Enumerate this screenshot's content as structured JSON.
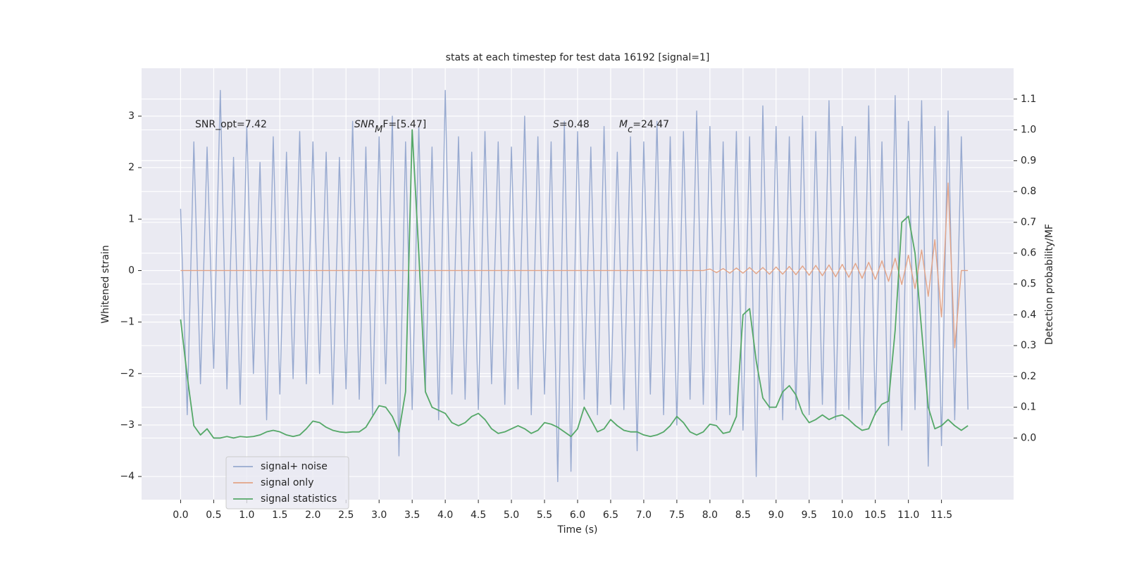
{
  "chart_data": {
    "type": "line",
    "title": "stats at each timestep for test data 16192 [signal=1]",
    "xlabel": "Time (s)",
    "ylabel": "Whitened strain",
    "y2label": "Detection probability/MF",
    "annotations": [
      {
        "text": "SNR_opt=7.42"
      },
      {
        "italic": "SNR",
        "sub": "M",
        "text": "F=[5.47]"
      },
      {
        "italic": "S",
        "text": "=0.48"
      },
      {
        "italic": "M",
        "sub": "c",
        "text": "=24.47"
      }
    ],
    "x": [
      0.0,
      0.1,
      0.2,
      0.3,
      0.4,
      0.5,
      0.6,
      0.7,
      0.8,
      0.9,
      1.0,
      1.1,
      1.2,
      1.3,
      1.4,
      1.5,
      1.6,
      1.7,
      1.8,
      1.9,
      2.0,
      2.1,
      2.2,
      2.3,
      2.4,
      2.5,
      2.6,
      2.7,
      2.8,
      2.9,
      3.0,
      3.1,
      3.2,
      3.3,
      3.4,
      3.5,
      3.6,
      3.7,
      3.8,
      3.9,
      4.0,
      4.1,
      4.2,
      4.3,
      4.4,
      4.5,
      4.6,
      4.7,
      4.8,
      4.9,
      5.0,
      5.1,
      5.2,
      5.3,
      5.4,
      5.5,
      5.6,
      5.7,
      5.8,
      5.9,
      6.0,
      6.1,
      6.2,
      6.3,
      6.4,
      6.5,
      6.6,
      6.7,
      6.8,
      6.9,
      7.0,
      7.1,
      7.2,
      7.3,
      7.4,
      7.5,
      7.6,
      7.7,
      7.8,
      7.9,
      8.0,
      8.1,
      8.2,
      8.3,
      8.4,
      8.5,
      8.6,
      8.7,
      8.8,
      8.9,
      9.0,
      9.1,
      9.2,
      9.3,
      9.4,
      9.5,
      9.6,
      9.7,
      9.8,
      9.9,
      10.0,
      10.1,
      10.2,
      10.3,
      10.4,
      10.5,
      10.6,
      10.7,
      10.8,
      10.9,
      11.0,
      11.1,
      11.2,
      11.3,
      11.4,
      11.5,
      11.6,
      11.7,
      11.8,
      11.9
    ],
    "series": [
      {
        "name": "signal+ noise",
        "color": "#98aad0",
        "values": [
          1.2,
          -2.8,
          2.5,
          -2.2,
          2.4,
          -1.9,
          3.5,
          -2.3,
          2.2,
          -2.6,
          2.8,
          -2.0,
          2.1,
          -2.9,
          2.6,
          -2.4,
          2.3,
          -2.1,
          2.7,
          -2.2,
          2.5,
          -2.0,
          2.3,
          -2.6,
          2.2,
          -2.3,
          2.9,
          -2.5,
          2.4,
          -2.8,
          2.6,
          -2.2,
          3.0,
          -3.6,
          2.5,
          -2.7,
          2.8,
          -2.3,
          2.4,
          -2.9,
          3.5,
          -2.4,
          2.6,
          -2.5,
          2.3,
          -2.7,
          2.7,
          -2.2,
          2.5,
          -2.6,
          2.4,
          -2.3,
          3.0,
          -2.8,
          2.6,
          -2.4,
          2.5,
          -4.1,
          2.9,
          -3.9,
          2.7,
          -2.5,
          2.4,
          -2.8,
          2.8,
          -2.6,
          2.3,
          -2.7,
          2.6,
          -3.5,
          2.5,
          -2.4,
          2.9,
          -2.8,
          2.6,
          -3.0,
          2.7,
          -2.5,
          3.1,
          -2.6,
          2.8,
          -2.9,
          2.5,
          -2.8,
          2.7,
          -3.1,
          2.6,
          -4.0,
          3.2,
          -2.7,
          2.8,
          -2.9,
          2.6,
          -2.7,
          3.0,
          -2.8,
          2.7,
          -2.6,
          3.3,
          -2.9,
          2.8,
          -2.7,
          2.6,
          -3.0,
          3.2,
          -2.8,
          2.5,
          -3.4,
          3.4,
          -3.1,
          2.9,
          -2.7,
          3.3,
          -3.8,
          2.8,
          -3.4,
          3.1,
          -2.9,
          2.6,
          -2.7
        ]
      },
      {
        "name": "signal only",
        "color": "#e3a487",
        "values": [
          0,
          0,
          0,
          0,
          0,
          0,
          0,
          0,
          0,
          0,
          0,
          0,
          0,
          0,
          0,
          0,
          0,
          0,
          0,
          0,
          0,
          0,
          0,
          0,
          0,
          0,
          0,
          0,
          0,
          0,
          0,
          0,
          0,
          0,
          0,
          0,
          0,
          0,
          0,
          0,
          0,
          0,
          0,
          0,
          0,
          0,
          0,
          0,
          0,
          0,
          0,
          0,
          0,
          0,
          0,
          0,
          0,
          0,
          0,
          0,
          0,
          0,
          0,
          0,
          0,
          0,
          0,
          0,
          0,
          0,
          0,
          0,
          0,
          0,
          0,
          0,
          0,
          0,
          0,
          0,
          0.03,
          -0.04,
          0.04,
          -0.05,
          0.05,
          -0.05,
          0.06,
          -0.06,
          0.06,
          -0.07,
          0.07,
          -0.07,
          0.08,
          -0.08,
          0.09,
          -0.09,
          0.1,
          -0.1,
          0.11,
          -0.12,
          0.12,
          -0.13,
          0.14,
          -0.15,
          0.16,
          -0.17,
          0.19,
          -0.21,
          0.24,
          -0.27,
          0.3,
          -0.35,
          0.4,
          -0.5,
          0.6,
          -0.9,
          1.7,
          -1.5,
          0,
          0
        ]
      },
      {
        "name": "signal statistics",
        "color": "#55a868",
        "axis": "y2",
        "values": [
          0.385,
          0.2,
          0.04,
          0.01,
          0.03,
          0.0,
          0.0,
          0.005,
          0.0,
          0.005,
          0.003,
          0.005,
          0.01,
          0.02,
          0.025,
          0.02,
          0.01,
          0.005,
          0.01,
          0.03,
          0.055,
          0.05,
          0.035,
          0.025,
          0.02,
          0.018,
          0.02,
          0.02,
          0.035,
          0.07,
          0.105,
          0.1,
          0.07,
          0.02,
          0.15,
          1.0,
          0.6,
          0.15,
          0.1,
          0.09,
          0.08,
          0.05,
          0.04,
          0.05,
          0.07,
          0.08,
          0.06,
          0.03,
          0.015,
          0.02,
          0.03,
          0.04,
          0.03,
          0.015,
          0.025,
          0.05,
          0.045,
          0.035,
          0.02,
          0.005,
          0.03,
          0.1,
          0.06,
          0.02,
          0.03,
          0.06,
          0.04,
          0.025,
          0.02,
          0.02,
          0.01,
          0.005,
          0.01,
          0.02,
          0.04,
          0.07,
          0.05,
          0.02,
          0.01,
          0.02,
          0.045,
          0.04,
          0.015,
          0.02,
          0.07,
          0.4,
          0.42,
          0.25,
          0.13,
          0.1,
          0.1,
          0.15,
          0.17,
          0.14,
          0.08,
          0.05,
          0.06,
          0.075,
          0.06,
          0.07,
          0.075,
          0.06,
          0.04,
          0.025,
          0.03,
          0.08,
          0.11,
          0.12,
          0.35,
          0.7,
          0.72,
          0.6,
          0.35,
          0.1,
          0.03,
          0.04,
          0.06,
          0.04,
          0.025,
          0.04
        ]
      }
    ],
    "xlim": [
      -0.59,
      12.59
    ],
    "xticks": [
      {
        "value": 0,
        "label": "0.0"
      },
      0.5,
      {
        "value": 1,
        "label": "1.0"
      },
      1.5,
      {
        "value": 2,
        "label": "2.0"
      },
      2.5,
      {
        "value": 3,
        "label": "3.0"
      },
      3.5,
      {
        "value": 4,
        "label": "4.0"
      },
      4.5,
      {
        "value": 5,
        "label": "5.0"
      },
      5.5,
      {
        "value": 6,
        "label": "6.0"
      },
      6.5,
      {
        "value": 7,
        "label": "7.0"
      },
      7.5,
      {
        "value": 8,
        "label": "8.0"
      },
      8.5,
      {
        "value": 9,
        "label": "9.0"
      },
      9.5,
      {
        "value": 10,
        "label": "10.0"
      },
      10.5,
      {
        "value": 11,
        "label": "11.0"
      },
      11.5
    ],
    "ylim": [
      -4.45,
      3.93
    ],
    "yticks": [
      {
        "value": -4,
        "label": "−4"
      },
      {
        "value": -3,
        "label": "−3"
      },
      {
        "value": -2,
        "label": "−2"
      },
      {
        "value": -1,
        "label": "−1"
      },
      0,
      1,
      2,
      3
    ],
    "y2lim": [
      -0.2,
      1.2
    ],
    "y2ticks": [
      {
        "value": 0,
        "label": "0.0"
      },
      0.1,
      0.2,
      0.3,
      0.4,
      0.5,
      0.6,
      0.7,
      0.8,
      0.9,
      {
        "value": 1,
        "label": "1.0"
      },
      1.1
    ],
    "grid": true,
    "legend": "lower left"
  }
}
